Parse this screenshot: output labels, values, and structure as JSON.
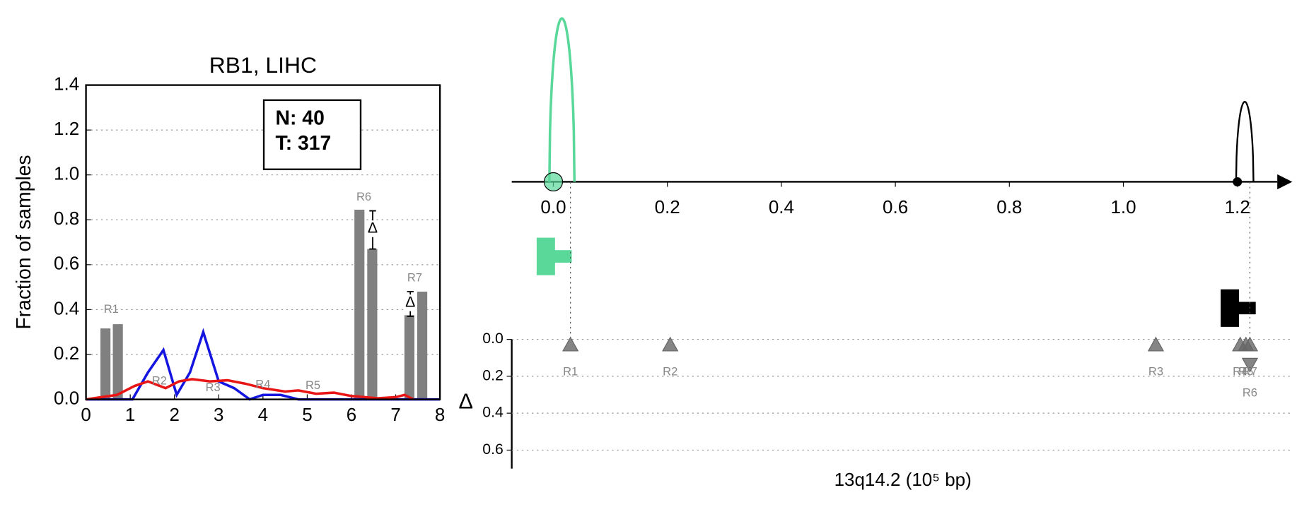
{
  "chart_data": [
    {
      "type": "bar",
      "title": "RB1, LIHC",
      "ylabel": "Fraction of samples",
      "xlim": [
        0,
        8
      ],
      "xticks": [
        0,
        1,
        2,
        3,
        4,
        5,
        6,
        7,
        8
      ],
      "ylim": [
        0,
        1.4
      ],
      "yticks": [
        {
          "value": 0,
          "label": "0.0"
        },
        0.2,
        0.4,
        0.6,
        0.8,
        {
          "value": 1,
          "label": "1.0"
        },
        1.2,
        1.4
      ],
      "grid": true,
      "annotation": [
        "N: 40",
        "T: 317"
      ],
      "bars": {
        "color": "#808080",
        "x": [
          0.44,
          0.72,
          6.18,
          6.47,
          7.31,
          7.6
        ],
        "values": [
          0.316,
          0.335,
          0.845,
          0.67,
          0.375,
          0.48
        ]
      },
      "region_labels": {
        "text": [
          "R1",
          "R2",
          "R3",
          "R4",
          "R5",
          "R6",
          "R7"
        ],
        "x": [
          0.57,
          1.66,
          2.87,
          4.0,
          5.13,
          6.28,
          7.43
        ],
        "y": [
          0.4,
          0.08,
          0.05,
          0.065,
          0.06,
          0.9,
          0.54
        ]
      },
      "deltas": {
        "label": "Δ",
        "x": [
          6.48,
          7.33
        ],
        "values": [
          0.76,
          0.43
        ],
        "low": [
          0.67,
          0.37
        ],
        "high": [
          0.84,
          0.48
        ]
      },
      "series": [
        {
          "color": "#1515e0",
          "x": [
            0,
            0.5,
            1.05,
            1.4,
            1.75,
            2.05,
            2.35,
            2.65,
            3.0,
            3.35,
            3.7,
            4.0,
            4.4,
            4.8,
            5.5,
            6.0,
            7.0,
            8.0
          ],
          "values": [
            0,
            0,
            0,
            0.12,
            0.22,
            0.02,
            0.12,
            0.3,
            0.08,
            0.05,
            0,
            0.02,
            0.02,
            0,
            0,
            0,
            0,
            0
          ]
        },
        {
          "color": "#e81515",
          "x": [
            0,
            0.7,
            1.1,
            1.4,
            1.8,
            2.1,
            2.4,
            2.8,
            3.2,
            3.6,
            4.0,
            4.5,
            4.8,
            5.2,
            5.6,
            6.0,
            6.6,
            7.0,
            7.2,
            7.4
          ],
          "values": [
            0,
            0.02,
            0.06,
            0.08,
            0.05,
            0.08,
            0.09,
            0.08,
            0.085,
            0.07,
            0.05,
            0.035,
            0.04,
            0.025,
            0.03,
            0.015,
            0.005,
            0.01,
            0.02,
            0
          ]
        }
      ]
    },
    {
      "type": "peaks",
      "xlim": [
        -0.073,
        1.27
      ],
      "xticks": [
        {
          "value": 0,
          "label": "0.0"
        },
        0.2,
        0.4,
        0.6,
        0.8,
        {
          "value": 1,
          "label": "1.0"
        },
        1.2
      ],
      "peaks": {
        "x": [
          0.015,
          1.213
        ],
        "heights": [
          1.0,
          0.49
        ],
        "colors": [
          "#5ad89a",
          "#000000"
        ]
      },
      "sites": {
        "x": [
          0,
          1.2
        ],
        "colors": [
          "#5ad89a",
          "#000000"
        ]
      }
    },
    {
      "type": "scatter",
      "ylabel": "Δ",
      "xlabel": "13q14.2 (10⁵ bp)",
      "xlim": [
        -0.073,
        1.27
      ],
      "ylim": [
        0,
        0.7
      ],
      "inverted": true,
      "yticks": [
        {
          "value": 0,
          "label": "0.0"
        },
        0.2,
        0.4,
        0.6
      ],
      "grid": true,
      "points": {
        "color": "#666666",
        "labels": [
          "R1",
          "R2",
          "R3",
          "R4",
          "R5",
          "R6",
          "R7"
        ],
        "x": [
          0.03,
          0.205,
          1.057,
          1.205,
          1.215,
          1.222,
          1.222
        ],
        "values": [
          0.03,
          0.03,
          0.03,
          0.03,
          0.03,
          0.135,
          0.03
        ],
        "markers": [
          "^",
          "^",
          "^",
          "^",
          "^",
          "v",
          "^"
        ]
      }
    }
  ]
}
